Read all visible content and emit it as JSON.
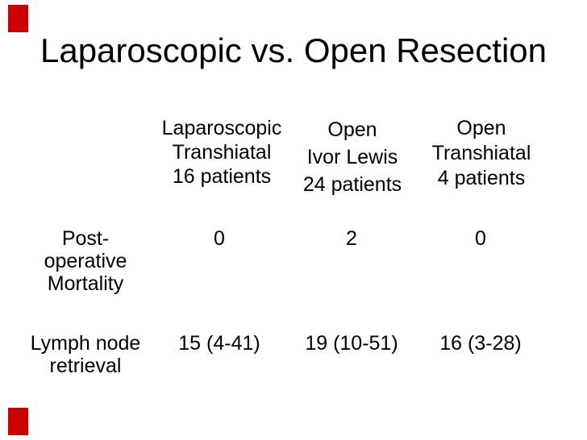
{
  "slide": {
    "title": "Laparoscopic vs. Open Resection",
    "accent_color": "#cc0000",
    "background_color": "#ffffff",
    "text_color": "#000000"
  },
  "table": {
    "columns": [
      {
        "lines": [
          "Laparoscopic",
          "Transhiatal",
          "16 patients"
        ]
      },
      {
        "lines": [
          "Open",
          "Ivor Lewis",
          "24 patients"
        ]
      },
      {
        "lines": [
          "Open",
          "Transhiatal",
          "4 patients"
        ]
      }
    ],
    "rows": [
      {
        "label_lines": [
          "Post-",
          "operative",
          "Mortality"
        ],
        "values": [
          "0",
          "2",
          "0"
        ]
      },
      {
        "label_lines": [
          "Lymph node",
          "retrieval"
        ],
        "values": [
          "15 (4-41)",
          "19 (10-51)",
          "16 (3-28)"
        ]
      }
    ]
  }
}
